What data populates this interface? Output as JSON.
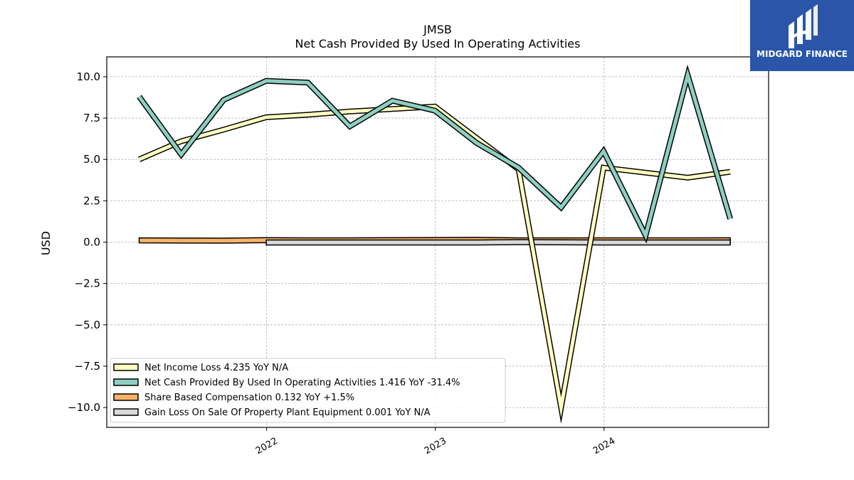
{
  "brand": {
    "name": "MIDGARD FINANCE",
    "color": "#2a55a8"
  },
  "chart_data": {
    "type": "line",
    "title": "JMSB",
    "subtitle": "Net Cash Provided By Used In Operating Activities",
    "xlabel": "",
    "ylabel": "USD",
    "ylim": [
      -11.2,
      11.2
    ],
    "xlim": [
      "2021-01-20",
      "2024-12-22"
    ],
    "yticks": [
      10.0,
      7.5,
      5.0,
      2.5,
      0.0,
      -2.5,
      -5.0,
      -7.5,
      -10.0
    ],
    "ytick_labels": [
      "10.0",
      "7.5",
      "5.0",
      "2.5",
      "0.0",
      "−2.5",
      "−5.0",
      "−7.5",
      "−10.0"
    ],
    "xticks": [
      "2022-01-01",
      "2023-01-01",
      "2024-01-01"
    ],
    "xtick_labels": [
      "2022",
      "2023",
      "2024"
    ],
    "grid": true,
    "legend_position": "lower-left",
    "series": [
      {
        "name": "Net Income Loss",
        "legend": "Net Income Loss  4.235 YoY N/A",
        "color": "#ffffc0",
        "style": "band",
        "x": [
          "2021-03-31",
          "2021-06-30",
          "2021-09-30",
          "2021-12-31",
          "2022-03-31",
          "2022-06-30",
          "2022-09-30",
          "2022-12-31",
          "2023-03-31",
          "2023-06-30",
          "2023-09-30",
          "2023-12-31",
          "2024-03-31",
          "2024-06-30",
          "2024-09-30"
        ],
        "values": [
          5.0,
          6.1,
          6.8,
          7.55,
          7.7,
          7.9,
          8.05,
          8.2,
          6.3,
          4.4,
          -10.0,
          4.5,
          4.2,
          3.9,
          4.25
        ]
      },
      {
        "name": "Net Cash Provided By Used In Operating Activities",
        "legend": "Net Cash Provided By Used In Operating Activities  1.416 YoY -31.4%",
        "color": "#8ecfc1",
        "style": "band",
        "x": [
          "2021-03-31",
          "2021-06-30",
          "2021-09-30",
          "2021-12-31",
          "2022-03-31",
          "2022-06-30",
          "2022-09-30",
          "2022-12-31",
          "2023-03-31",
          "2023-06-30",
          "2023-09-30",
          "2023-12-31",
          "2024-03-31",
          "2024-06-30",
          "2024-09-30"
        ],
        "values": [
          8.8,
          5.3,
          8.6,
          9.75,
          9.65,
          7.0,
          8.55,
          7.95,
          6.0,
          4.5,
          2.1,
          5.5,
          0.4,
          10.1,
          1.4
        ]
      },
      {
        "name": "Share Based Compensation",
        "legend": "Share Based Compensation  0.132 YoY +1.5%",
        "color": "#f7b26a",
        "style": "bar",
        "x": [
          "2021-03-31",
          "2021-06-30",
          "2021-09-30",
          "2021-12-31",
          "2022-03-31",
          "2022-06-30",
          "2022-09-30",
          "2022-12-31",
          "2023-03-31",
          "2023-06-30",
          "2023-09-30",
          "2023-12-31",
          "2024-03-31",
          "2024-06-30",
          "2024-09-30"
        ],
        "values": [
          0.13,
          0.12,
          0.11,
          0.14,
          0.13,
          0.13,
          0.14,
          0.15,
          0.16,
          0.13,
          0.13,
          0.13,
          0.13,
          0.13,
          0.132
        ]
      },
      {
        "name": "Gain Loss On Sale Of Property Plant Equipment",
        "legend": "Gain Loss On Sale Of Property Plant Equipment  0.001 YoY N/A",
        "color": "#d9d9d9",
        "style": "bar",
        "x": [
          "2021-12-31",
          "2022-03-31",
          "2022-06-30",
          "2022-09-30",
          "2022-12-31",
          "2023-03-31",
          "2023-06-30",
          "2023-09-30",
          "2023-12-31",
          "2024-03-31",
          "2024-06-30",
          "2024-09-30"
        ],
        "values": [
          0.0,
          0.0,
          0.0,
          0.0,
          0.0,
          0.0,
          0.02,
          0.01,
          0.0,
          0.0,
          0.0,
          0.001
        ]
      }
    ]
  }
}
